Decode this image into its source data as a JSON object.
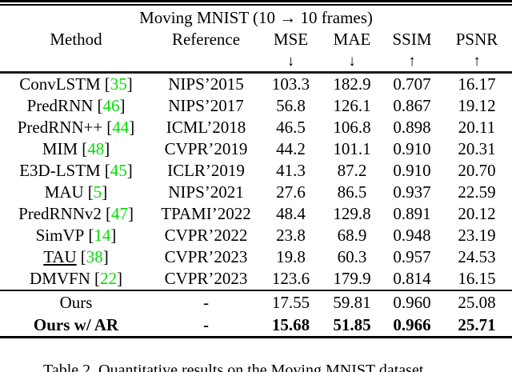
{
  "colors": {
    "citation_green": "#00DF00"
  },
  "table": {
    "title": "Moving MNIST (10 → 10 frames)",
    "citation": {
      "open": "[",
      "close": "]"
    },
    "columns": {
      "method": "Method",
      "reference": "Reference",
      "mse": "MSE",
      "mae": "MAE",
      "ssim": "SSIM",
      "psnr": "PSNR",
      "mse_dir": "↓",
      "mae_dir": "↓",
      "ssim_dir": "↑",
      "psnr_dir": "↑"
    },
    "rows": [
      {
        "method": "ConvLSTM",
        "cite": "35",
        "reference": "NIPS’2015",
        "mse": "103.3",
        "mae": "182.9",
        "ssim": "0.707",
        "psnr": "16.17"
      },
      {
        "method": "PredRNN",
        "cite": "46",
        "reference": "NIPS’2017",
        "mse": "56.8",
        "mae": "126.1",
        "ssim": "0.867",
        "psnr": "19.12"
      },
      {
        "method": "PredRNN++",
        "cite": "44",
        "reference": "ICML’2018",
        "mse": "46.5",
        "mae": "106.8",
        "ssim": "0.898",
        "psnr": "20.11"
      },
      {
        "method": "MIM",
        "cite": "48",
        "reference": "CVPR’2019",
        "mse": "44.2",
        "mae": "101.1",
        "ssim": "0.910",
        "psnr": "20.31"
      },
      {
        "method": "E3D-LSTM",
        "cite": "45",
        "reference": "ICLR’2019",
        "mse": "41.3",
        "mae": "87.2",
        "ssim": "0.910",
        "psnr": "20.70"
      },
      {
        "method": "MAU",
        "cite": "5",
        "reference": "NIPS’2021",
        "mse": "27.6",
        "mae": "86.5",
        "ssim": "0.937",
        "psnr": "22.59"
      },
      {
        "method": "PredRNNv2",
        "cite": "47",
        "reference": "TPAMI’2022",
        "mse": "48.4",
        "mae": "129.8",
        "ssim": "0.891",
        "psnr": "20.12"
      },
      {
        "method": "SimVP",
        "cite": "14",
        "reference": "CVPR’2022",
        "mse": "23.8",
        "mae": "68.9",
        "ssim": "0.948",
        "psnr": "23.19"
      },
      {
        "method": "TAU",
        "cite": "38",
        "reference": "CVPR’2023",
        "mse": "19.8",
        "mae": "60.3",
        "ssim": "0.957",
        "psnr": "24.53"
      },
      {
        "method": "DMVFN",
        "cite": "22",
        "reference": "CVPR’2023",
        "mse": "123.6",
        "mae": "179.9",
        "ssim": "0.814",
        "psnr": "16.15"
      },
      {
        "method": "Ours",
        "cite": null,
        "reference": "-",
        "mse": "17.55",
        "mae": "59.81",
        "ssim": "0.960",
        "psnr": "25.08"
      },
      {
        "method": "Ours w/ AR",
        "cite": null,
        "reference": "-",
        "mse": "15.68",
        "mae": "51.85",
        "ssim": "0.966",
        "psnr": "25.71"
      }
    ]
  },
  "caption": "Table 2. Quantitative results on the Moving MNIST dataset"
}
